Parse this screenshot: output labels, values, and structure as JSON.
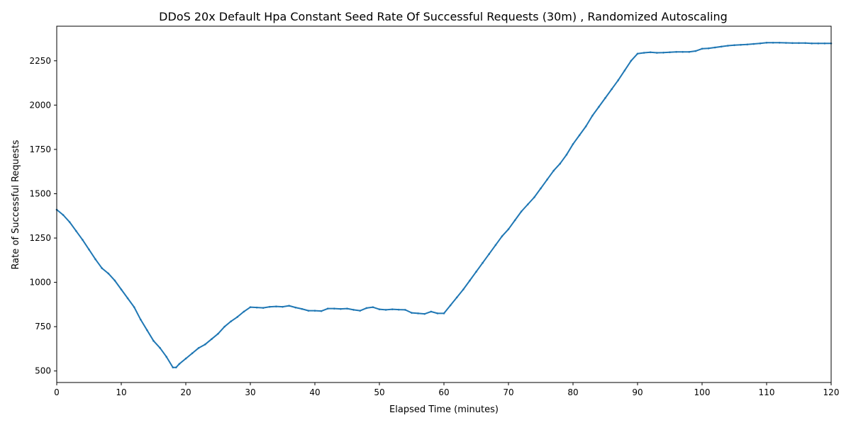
{
  "chart_data": {
    "type": "line",
    "title": "DDoS 20x Default Hpa Constant Seed Rate Of Successful Requests (30m) , Randomized Autoscaling",
    "xlabel": "Elapsed Time (minutes)",
    "ylabel": "Rate of Successful Requests",
    "xlim": [
      0,
      120
    ],
    "ylim": [
      435,
      2445
    ],
    "xticks": [
      0,
      10,
      20,
      30,
      40,
      50,
      60,
      70,
      80,
      90,
      100,
      110,
      120
    ],
    "yticks": [
      500,
      750,
      1000,
      1250,
      1500,
      1750,
      2000,
      2250
    ],
    "grid": false,
    "legend": "none",
    "line_color": "#1f77b4",
    "marker": "small dots",
    "series": [
      {
        "x": [
          0,
          1,
          2,
          3,
          4,
          5,
          6,
          7,
          8,
          9,
          10,
          11,
          12,
          13,
          14,
          15,
          16,
          17,
          18,
          18.5,
          19,
          20,
          21,
          22,
          23,
          24,
          25,
          26,
          27,
          28,
          29,
          30,
          31,
          32,
          33,
          34,
          35,
          36,
          37,
          38,
          39,
          40,
          41,
          42,
          43,
          44,
          45,
          46,
          47,
          48,
          49,
          50,
          51,
          52,
          53,
          54,
          55,
          56,
          57,
          58,
          59,
          60,
          61,
          62,
          63,
          64,
          65,
          66,
          67,
          68,
          69,
          70,
          71,
          72,
          73,
          74,
          75,
          76,
          77,
          78,
          79,
          80,
          81,
          82,
          83,
          84,
          85,
          86,
          87,
          88,
          89,
          90,
          91,
          92,
          93,
          94,
          95,
          96,
          97,
          98,
          99,
          100,
          101,
          102,
          103,
          104,
          105,
          106,
          107,
          108,
          109,
          110,
          111,
          112,
          113,
          114,
          115,
          116,
          117,
          118,
          119,
          120
        ],
        "y": [
          1410,
          1380,
          1340,
          1290,
          1240,
          1185,
          1130,
          1080,
          1050,
          1010,
          960,
          910,
          860,
          790,
          730,
          670,
          630,
          580,
          520,
          520,
          540,
          570,
          600,
          630,
          650,
          680,
          710,
          750,
          780,
          805,
          835,
          860,
          858,
          856,
          862,
          864,
          862,
          868,
          858,
          850,
          840,
          840,
          838,
          852,
          852,
          850,
          852,
          845,
          840,
          855,
          860,
          848,
          845,
          848,
          846,
          845,
          828,
          825,
          822,
          835,
          825,
          825,
          870,
          915,
          960,
          1010,
          1060,
          1110,
          1160,
          1210,
          1260,
          1300,
          1350,
          1400,
          1440,
          1480,
          1530,
          1580,
          1630,
          1670,
          1720,
          1780,
          1830,
          1880,
          1940,
          1990,
          2040,
          2090,
          2140,
          2195,
          2250,
          2290,
          2295,
          2298,
          2295,
          2296,
          2298,
          2300,
          2300,
          2300,
          2305,
          2318,
          2320,
          2325,
          2330,
          2335,
          2338,
          2340,
          2342,
          2345,
          2348,
          2352,
          2352,
          2352,
          2351,
          2350,
          2350,
          2350,
          2348,
          2348,
          2348,
          2348
        ]
      }
    ]
  }
}
